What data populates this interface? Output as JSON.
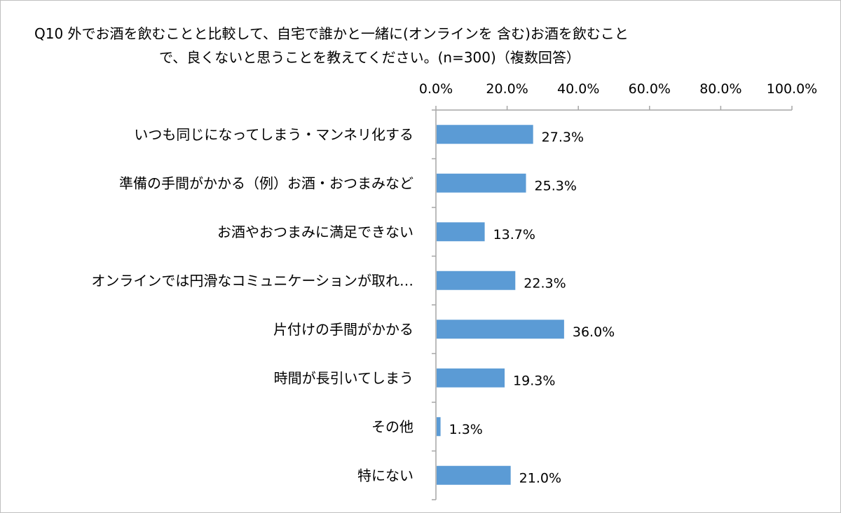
{
  "chart_data": {
    "type": "bar",
    "orientation": "horizontal",
    "title_line1": "Q10 外でお酒を飲むことと比較して、自宅で誰かと一緒に(オンラインを 含む)お酒を飲むこと",
    "title_line2": "で、良くないと思うことを教えてください。(n=300)（複数回答）",
    "categories": [
      "いつも同じになってしまう・マンネリ化する",
      "準備の手間がかかる（例）お酒・おつまみなど",
      "お酒やおつまみに満足できない",
      "オンラインでは円滑なコミュニケーションが取れ…",
      "片付けの手間がかかる",
      "時間が長引いてしまう",
      "その他",
      "特にない"
    ],
    "values": [
      27.3,
      25.3,
      13.7,
      22.3,
      36.0,
      19.3,
      1.3,
      21.0
    ],
    "value_labels": [
      "27.3%",
      "25.3%",
      "13.7%",
      "22.3%",
      "36.0%",
      "19.3%",
      "1.3%",
      "21.0%"
    ],
    "xlim": [
      0,
      100
    ],
    "xticks": [
      0,
      20,
      40,
      60,
      80,
      100
    ],
    "xtick_labels": [
      "0.0%",
      "20.0%",
      "40.0%",
      "60.0%",
      "80.0%",
      "100.0%"
    ],
    "axis_position": "top",
    "grid": false,
    "legend": "none",
    "bar_color": "#5b9bd5",
    "axis_color": "#a6a6a6"
  }
}
